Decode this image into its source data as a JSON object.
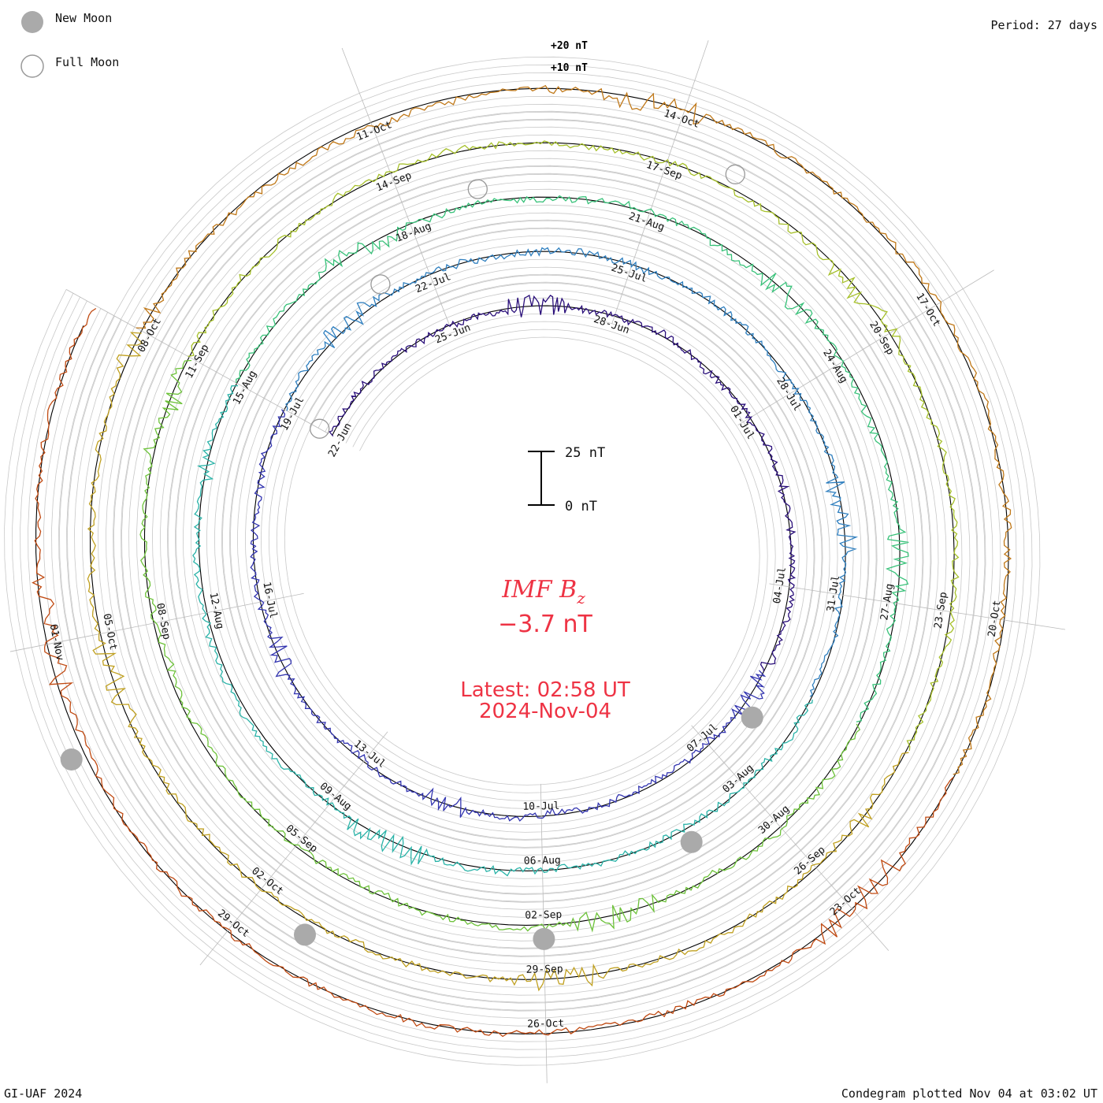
{
  "chart_data": {
    "type": "condegram",
    "title": "IMF B",
    "title_subscript": "z",
    "current_value": "−3.7 nT",
    "latest_time": "Latest: 02:58 UT",
    "latest_date": "2024-Nov-04",
    "period": "Period: 27 days",
    "credit": "GI-UAF 2024",
    "plotted": "Condegram plotted Nov 04 at 03:02 UT",
    "legend": [
      {
        "label": "New Moon",
        "kind": "new"
      },
      {
        "label": "Full Moon",
        "kind": "full"
      }
    ],
    "reference_labels": [
      "+20 nT",
      "+10 nT"
    ],
    "scale_bar": {
      "top_label": "25 nT",
      "bottom_label": "0 nT",
      "value_nT": 25
    },
    "colors": {
      "accent": "#ee3344",
      "grid": "#bbbbbb",
      "moon_new": "#aaaaaa",
      "moon_full": "#999999",
      "series": [
        "#111133",
        "#2a0f7a",
        "#3335b0",
        "#2f7fbf",
        "#2ab3a8",
        "#39c27a",
        "#6dc23a",
        "#a6c02a",
        "#c0a020",
        "#c07818",
        "#c04a12",
        "#c02010"
      ]
    },
    "cycles": [
      {
        "name": "cycle-1",
        "labels": [
          "22-Jun",
          "25-Jun",
          "28-Jun",
          "01-Jul",
          "04-Jul",
          "07-Jul",
          "10-Jul",
          "13-Jul",
          "16-Jul"
        ]
      },
      {
        "name": "cycle-2",
        "labels": [
          "19-Jul",
          "22-Jul",
          "25-Jul",
          "28-Jul",
          "31-Jul",
          "03-Aug",
          "06-Aug",
          "09-Aug",
          "12-Aug"
        ]
      },
      {
        "name": "cycle-3",
        "labels": [
          "15-Aug",
          "18-Aug",
          "21-Aug",
          "24-Aug",
          "27-Aug",
          "30-Aug",
          "02-Sep",
          "05-Sep",
          "08-Sep"
        ]
      },
      {
        "name": "cycle-4",
        "labels": [
          "11-Sep",
          "14-Sep",
          "17-Sep",
          "20-Sep",
          "23-Sep",
          "26-Sep",
          "29-Sep",
          "02-Oct",
          "05-Oct"
        ]
      },
      {
        "name": "cycle-5",
        "labels": [
          "08-Oct",
          "11-Oct",
          "14-Oct",
          "17-Oct",
          "20-Oct",
          "23-Oct",
          "26-Oct",
          "29-Oct",
          "01-Nov"
        ]
      }
    ],
    "moon_markers": [
      {
        "kind": "full",
        "cycle": 1,
        "day": 0
      },
      {
        "kind": "new",
        "cycle": 1,
        "day": 14.2
      },
      {
        "kind": "full",
        "cycle": 2,
        "day": 2.3
      },
      {
        "kind": "new",
        "cycle": 2,
        "day": 16.0
      },
      {
        "kind": "full",
        "cycle": 3,
        "day": 3.9
      },
      {
        "kind": "new",
        "cycle": 3,
        "day": 18.0
      },
      {
        "kind": "full",
        "cycle": 4,
        "day": 6.7
      },
      {
        "kind": "new",
        "cycle": 4,
        "day": 20.4
      },
      {
        "kind": "new",
        "cycle": 5,
        "day": 23.0
      }
    ],
    "units": "nT",
    "days_per_cycle": 27
  }
}
